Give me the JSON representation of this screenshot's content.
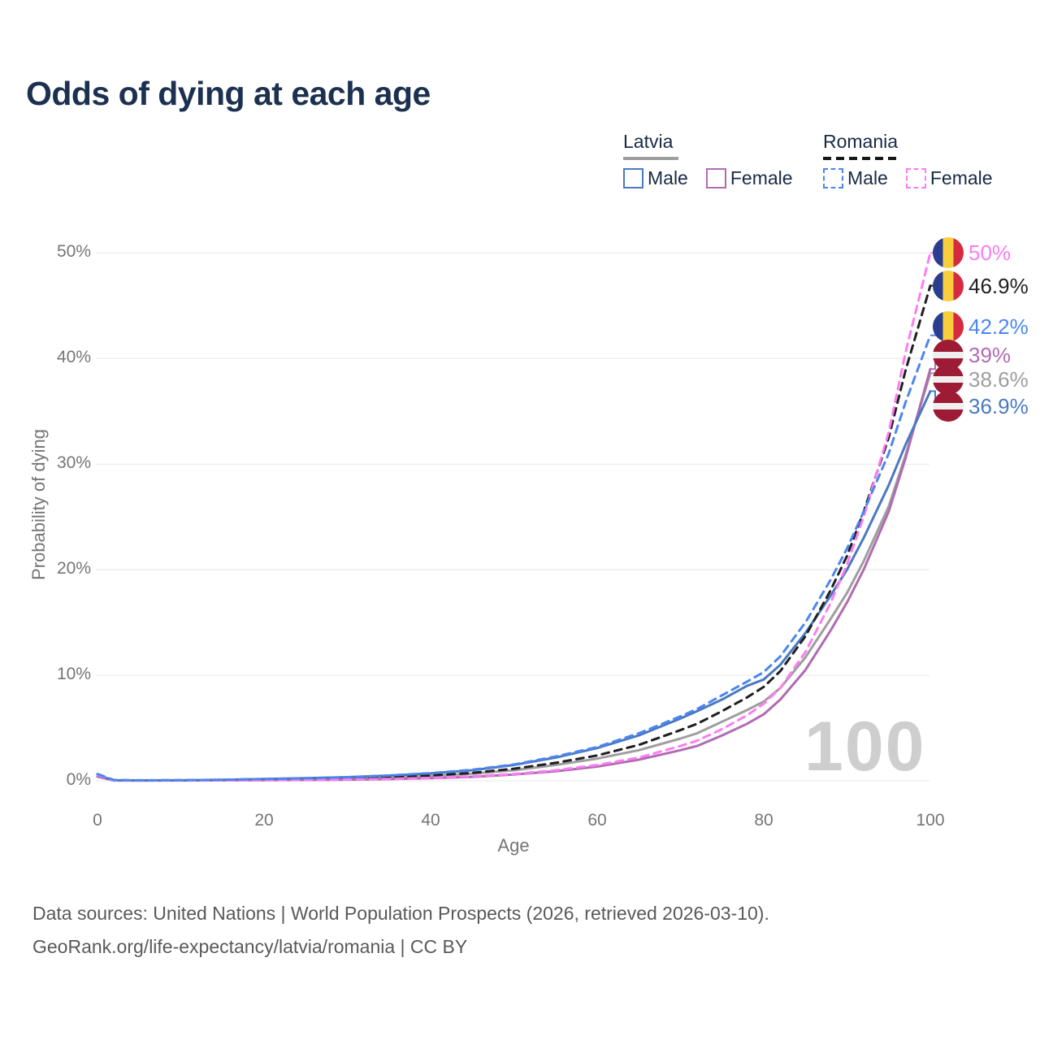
{
  "title": "Odds of dying at each age",
  "legend": {
    "groups": [
      {
        "country": "Latvia",
        "rule_style": "solid",
        "items": [
          {
            "label": "Male",
            "color": "#4a79c0",
            "box_style": "solid"
          },
          {
            "label": "Female",
            "color": "#b06bb3",
            "box_style": "solid"
          }
        ]
      },
      {
        "country": "Romania",
        "rule_style": "dashed",
        "items": [
          {
            "label": "Male",
            "color": "#4b86f0",
            "box_style": "dashed"
          },
          {
            "label": "Female",
            "color": "#fb7df2",
            "box_style": "dashed"
          }
        ]
      }
    ]
  },
  "watermark": "100",
  "footer": {
    "line1": "Data sources: United Nations | World Population Prospects (2026, retrieved 2026-03-10).",
    "line2": "GeoRank.org/life-expectancy/latvia/romania | CC BY"
  },
  "chart_data": {
    "type": "line",
    "title": "Odds of dying at each age",
    "xlabel": "Age",
    "ylabel": "Probability of dying",
    "xlim": [
      0,
      100
    ],
    "ylim": [
      0,
      50
    ],
    "xticks": [
      "0",
      "20",
      "40",
      "60",
      "80",
      "100"
    ],
    "yticks": [
      "0%",
      "10%",
      "20%",
      "30%",
      "40%",
      "50%"
    ],
    "grid": "horizontal",
    "legend_position": "top-right",
    "x": [
      0,
      2,
      5,
      10,
      15,
      20,
      25,
      30,
      35,
      40,
      45,
      50,
      55,
      60,
      65,
      70,
      72,
      75,
      78,
      80,
      82,
      85,
      88,
      90,
      92,
      95,
      97,
      100
    ],
    "series": [
      {
        "name": "Latvia Both sexes",
        "country": "Latvia",
        "sex": "Both",
        "style": "solid",
        "color": "#9e9e9e",
        "values": [
          0.45,
          0.04,
          0.03,
          0.04,
          0.07,
          0.11,
          0.16,
          0.22,
          0.32,
          0.46,
          0.68,
          1.0,
          1.5,
          2.1,
          2.9,
          4.0,
          4.5,
          5.6,
          6.7,
          7.5,
          8.8,
          11.7,
          15.3,
          17.8,
          20.8,
          26.0,
          30.8,
          38.6
        ]
      },
      {
        "name": "Latvia Female",
        "country": "Latvia",
        "sex": "Female",
        "style": "solid",
        "color": "#b06bb3",
        "values": [
          0.4,
          0.03,
          0.03,
          0.03,
          0.05,
          0.06,
          0.08,
          0.11,
          0.16,
          0.25,
          0.38,
          0.6,
          0.9,
          1.35,
          2.0,
          2.9,
          3.3,
          4.3,
          5.4,
          6.3,
          7.7,
          10.5,
          14.2,
          16.9,
          20.0,
          25.5,
          30.5,
          39.0
        ]
      },
      {
        "name": "Latvia Male",
        "country": "Latvia",
        "sex": "Male",
        "style": "solid",
        "color": "#4a79c0",
        "values": [
          0.5,
          0.06,
          0.04,
          0.05,
          0.1,
          0.18,
          0.25,
          0.35,
          0.5,
          0.7,
          1.0,
          1.5,
          2.2,
          3.1,
          4.3,
          5.9,
          6.6,
          7.7,
          9.0,
          9.6,
          11.0,
          14.0,
          17.5,
          20.0,
          23.0,
          28.0,
          31.8,
          36.9
        ]
      },
      {
        "name": "Romania Both sexes",
        "country": "Romania",
        "sex": "Both",
        "style": "dashed",
        "color": "#1f1f1f",
        "values": [
          0.6,
          0.05,
          0.04,
          0.05,
          0.08,
          0.12,
          0.17,
          0.24,
          0.35,
          0.5,
          0.75,
          1.15,
          1.7,
          2.4,
          3.4,
          4.8,
          5.4,
          6.6,
          7.9,
          8.9,
          10.4,
          13.7,
          18.0,
          21.3,
          25.5,
          32.5,
          38.8,
          46.9
        ]
      },
      {
        "name": "Romania Female",
        "country": "Romania",
        "sex": "Female",
        "style": "dashed",
        "color": "#fb7df2",
        "values": [
          0.55,
          0.04,
          0.03,
          0.04,
          0.05,
          0.07,
          0.09,
          0.12,
          0.18,
          0.28,
          0.42,
          0.65,
          1.0,
          1.5,
          2.2,
          3.3,
          3.8,
          4.9,
          6.2,
          7.3,
          8.8,
          12.2,
          16.8,
          20.5,
          25.0,
          33.0,
          40.5,
          50.0
        ]
      },
      {
        "name": "Romania Male",
        "country": "Romania",
        "sex": "Male",
        "style": "dashed",
        "color": "#4b86f0",
        "values": [
          0.65,
          0.07,
          0.05,
          0.06,
          0.1,
          0.17,
          0.24,
          0.34,
          0.5,
          0.72,
          1.05,
          1.55,
          2.3,
          3.2,
          4.5,
          6.1,
          6.8,
          8.1,
          9.4,
          10.3,
          11.8,
          15.0,
          19.0,
          22.0,
          25.5,
          31.0,
          35.8,
          42.2
        ]
      }
    ],
    "end_labels": [
      {
        "label": "50%",
        "end_value": 50.0,
        "color": "#fb7df2",
        "flag": "romania",
        "series": "Romania Female"
      },
      {
        "label": "46.9%",
        "end_value": 46.9,
        "color": "#1f1f1f",
        "flag": "romania",
        "series": "Romania Both sexes"
      },
      {
        "label": "42.2%",
        "end_value": 42.2,
        "color": "#4b86f0",
        "flag": "romania",
        "series": "Romania Male"
      },
      {
        "label": "39%",
        "end_value": 39.0,
        "color": "#b06bb3",
        "flag": "latvia",
        "series": "Latvia Female"
      },
      {
        "label": "38.6%",
        "end_value": 38.6,
        "color": "#9e9e9e",
        "flag": "latvia",
        "series": "Latvia Both sexes"
      },
      {
        "label": "36.9%",
        "end_value": 36.9,
        "color": "#4a79c0",
        "flag": "latvia",
        "series": "Latvia Male"
      }
    ],
    "annotations": {
      "watermark": "100"
    }
  }
}
